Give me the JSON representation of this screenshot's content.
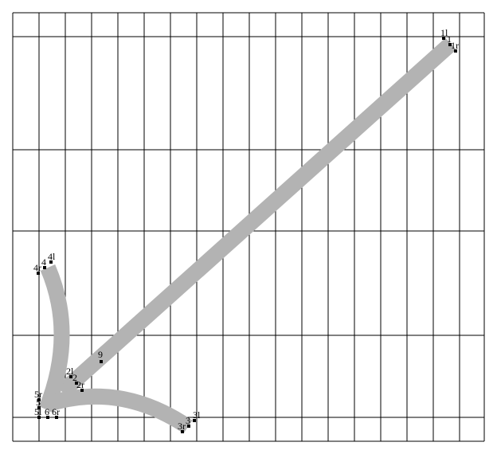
{
  "diagram": {
    "band_color": "#b3b3b3",
    "line_color": "#000000",
    "point_labels": [
      "1l",
      "1",
      "1r",
      "2l",
      "2",
      "2r",
      "3l",
      "3",
      "3r",
      "4l",
      "4",
      "4r",
      "5r",
      "5",
      "5l",
      "6",
      "6r",
      "9"
    ]
  }
}
